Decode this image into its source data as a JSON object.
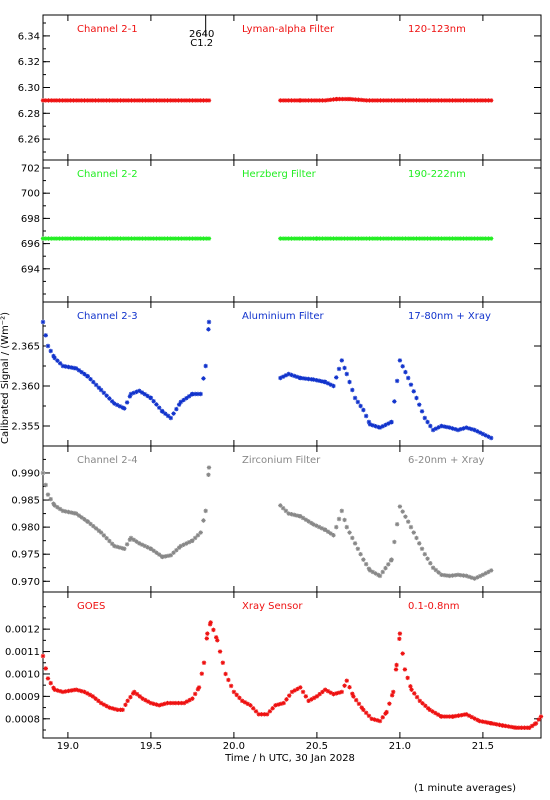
{
  "chart_data": {
    "type": "scatter",
    "xlabel": "Time / h UTC, 30 Jan 2028",
    "ylabel": "Calibrated Signal / (Wm⁻²)",
    "footnote": "(1 minute averages)",
    "xlim": [
      18.85,
      21.85
    ],
    "xticks": [
      19.0,
      19.5,
      20.0,
      20.5,
      21.0,
      21.5
    ],
    "xtick_labels": [
      "19.0",
      "19.5",
      "20.0",
      "20.5",
      "21.0",
      "21.5"
    ],
    "annotation": {
      "x": 19.83,
      "line1": "2640",
      "line2": "C1.2"
    },
    "panels": [
      {
        "channel": "Channel 2-1",
        "filter": "Lyman-alpha Filter",
        "band": "120-123nm",
        "color": "#ee1111",
        "ylim": [
          6.25,
          6.35
        ],
        "yticks": [
          6.26,
          6.28,
          6.3,
          6.32,
          6.34
        ],
        "ytick_labels": [
          "6.26",
          "6.28",
          "6.30",
          "6.32",
          "6.34"
        ],
        "series": [
          {
            "x": [
              18.85,
              19.0,
              19.2,
              19.4,
              19.6,
              19.8,
              19.85
            ],
            "y": [
              6.29,
              6.29,
              6.29,
              6.29,
              6.29,
              6.29,
              6.29
            ]
          },
          {
            "x": [
              20.28,
              20.4,
              20.5,
              20.55,
              20.62,
              20.7,
              20.8,
              20.9,
              21.1,
              21.3,
              21.5,
              21.55
            ],
            "y": [
              6.29,
              6.29,
              6.29,
              6.29,
              6.291,
              6.291,
              6.29,
              6.29,
              6.29,
              6.29,
              6.29,
              6.29
            ]
          }
        ]
      },
      {
        "channel": "Channel 2-2",
        "filter": "Herzberg Filter",
        "band": "190-222nm",
        "color": "#22ee22",
        "ylim": [
          692.0,
          702.0
        ],
        "yticks": [
          694,
          696,
          698,
          700,
          702
        ],
        "ytick_labels": [
          "694",
          "696",
          "698",
          "700",
          "702"
        ],
        "series": [
          {
            "x": [
              18.85,
              19.0,
              19.2,
              19.4,
              19.6,
              19.8,
              19.85
            ],
            "y": [
              696.4,
              696.4,
              696.4,
              696.4,
              696.4,
              696.4,
              696.4
            ]
          },
          {
            "x": [
              20.28,
              20.5,
              20.7,
              20.9,
              21.1,
              21.3,
              21.5,
              21.55
            ],
            "y": [
              696.4,
              696.4,
              696.4,
              696.4,
              696.4,
              696.4,
              696.4,
              696.4
            ]
          }
        ]
      },
      {
        "channel": "Channel 2-3",
        "filter": "Aluminium Filter",
        "band": "17-80nm + Xray",
        "color": "#1133cc",
        "ylim": [
          2.3535,
          2.3695
        ],
        "yticks": [
          2.355,
          2.36,
          2.365
        ],
        "ytick_labels": [
          "2.355",
          "2.360",
          "2.365"
        ],
        "series": [
          {
            "x": [
              18.85,
              18.88,
              18.92,
              18.97,
              19.05,
              19.12,
              19.2,
              19.28,
              19.34,
              19.38,
              19.43,
              19.5,
              19.57,
              19.62,
              19.68,
              19.75,
              19.8,
              19.83,
              19.85
            ],
            "y": [
              2.368,
              2.365,
              2.3635,
              2.3625,
              2.3622,
              2.3612,
              2.3595,
              2.3578,
              2.3572,
              2.359,
              2.3594,
              2.3585,
              2.3568,
              2.356,
              2.358,
              2.359,
              2.359,
              2.3625,
              2.368
            ]
          },
          {
            "x": [
              20.28,
              20.33,
              20.4,
              20.48,
              20.55,
              20.6,
              20.65,
              20.68,
              20.73,
              20.78,
              20.82,
              20.88,
              20.95,
              21.0,
              21.05,
              21.1,
              21.15,
              21.2,
              21.25,
              21.3,
              21.35,
              21.4,
              21.45,
              21.5,
              21.55
            ],
            "y": [
              2.361,
              2.3615,
              2.361,
              2.3608,
              2.3605,
              2.36,
              2.3632,
              2.3615,
              2.3585,
              2.357,
              2.3552,
              2.3548,
              2.3555,
              2.3632,
              2.361,
              2.3585,
              2.356,
              2.3545,
              2.355,
              2.3548,
              2.3545,
              2.3548,
              2.3545,
              2.354,
              2.3535
            ]
          }
        ]
      },
      {
        "channel": "Channel 2-4",
        "filter": "Zirconium Filter",
        "band": "6-20nm + Xray",
        "color": "#888888",
        "ylim": [
          0.9695,
          0.9935
        ],
        "yticks": [
          0.97,
          0.975,
          0.98,
          0.985,
          0.99
        ],
        "ytick_labels": [
          "0.970",
          "0.975",
          "0.980",
          "0.985",
          "0.990"
        ],
        "series": [
          {
            "x": [
              18.85,
              18.88,
              18.92,
              18.97,
              19.05,
              19.12,
              19.2,
              19.28,
              19.34,
              19.38,
              19.43,
              19.5,
              19.57,
              19.62,
              19.68,
              19.75,
              19.8,
              19.83,
              19.85
            ],
            "y": [
              0.99,
              0.986,
              0.984,
              0.983,
              0.9825,
              0.981,
              0.979,
              0.9765,
              0.976,
              0.978,
              0.977,
              0.976,
              0.9745,
              0.9748,
              0.9765,
              0.9775,
              0.979,
              0.983,
              0.991
            ]
          },
          {
            "x": [
              20.28,
              20.33,
              20.4,
              20.48,
              20.55,
              20.6,
              20.65,
              20.68,
              20.73,
              20.78,
              20.82,
              20.88,
              20.95,
              21.0,
              21.05,
              21.1,
              21.15,
              21.2,
              21.25,
              21.3,
              21.35,
              21.4,
              21.45,
              21.5,
              21.55
            ],
            "y": [
              0.984,
              0.9825,
              0.982,
              0.9805,
              0.9795,
              0.9785,
              0.983,
              0.98,
              0.977,
              0.974,
              0.972,
              0.971,
              0.974,
              0.9838,
              0.981,
              0.978,
              0.975,
              0.9725,
              0.9712,
              0.971,
              0.9712,
              0.971,
              0.9705,
              0.9712,
              0.972
            ]
          }
        ]
      },
      {
        "channel": "GOES",
        "filter": "Xray Sensor",
        "band": "0.1-0.8nm",
        "color": "#ee1111",
        "ylim": [
          0.00075,
          0.00133
        ],
        "yticks": [
          0.0008,
          0.0009,
          0.001,
          0.0011,
          0.0012
        ],
        "ytick_labels": [
          "0.0008",
          "0.0009",
          "0.0010",
          "0.0011",
          "0.0012"
        ],
        "series": [
          {
            "x": [
              18.85,
              18.88,
              18.92,
              18.97,
              19.05,
              19.1,
              19.15,
              19.2,
              19.25,
              19.3,
              19.33,
              19.36,
              19.4,
              19.45,
              19.5,
              19.55,
              19.6,
              19.65,
              19.7,
              19.75,
              19.79,
              19.82,
              19.84,
              19.86,
              19.9,
              19.95,
              20.0,
              20.05,
              20.1,
              20.15,
              20.2,
              20.25,
              20.3,
              20.35,
              20.4,
              20.45,
              20.5,
              20.55,
              20.6,
              20.65,
              20.68,
              20.72,
              20.78,
              20.83,
              20.88,
              20.92,
              20.96,
              20.98,
              21.0,
              21.03,
              21.07,
              21.12,
              21.18,
              21.25,
              21.32,
              21.4,
              21.48,
              21.55,
              21.62,
              21.7,
              21.78,
              21.82,
              21.85
            ],
            "y": [
              0.00108,
              0.00098,
              0.00093,
              0.00092,
              0.00093,
              0.00092,
              0.0009,
              0.00087,
              0.00085,
              0.00084,
              0.00084,
              0.00088,
              0.00092,
              0.00089,
              0.00087,
              0.00086,
              0.00087,
              0.00087,
              0.00087,
              0.00089,
              0.00094,
              0.00105,
              0.00118,
              0.00123,
              0.00115,
              0.001,
              0.00092,
              0.00088,
              0.00086,
              0.00082,
              0.00082,
              0.00086,
              0.00087,
              0.00092,
              0.00094,
              0.00088,
              0.0009,
              0.00093,
              0.00091,
              0.00092,
              0.00097,
              0.0009,
              0.00084,
              0.0008,
              0.00079,
              0.00083,
              0.00092,
              0.00104,
              0.00118,
              0.00102,
              0.00093,
              0.00088,
              0.00084,
              0.00081,
              0.00081,
              0.00082,
              0.00079,
              0.00078,
              0.00077,
              0.00076,
              0.00076,
              0.00078,
              0.00081
            ]
          }
        ]
      }
    ]
  }
}
